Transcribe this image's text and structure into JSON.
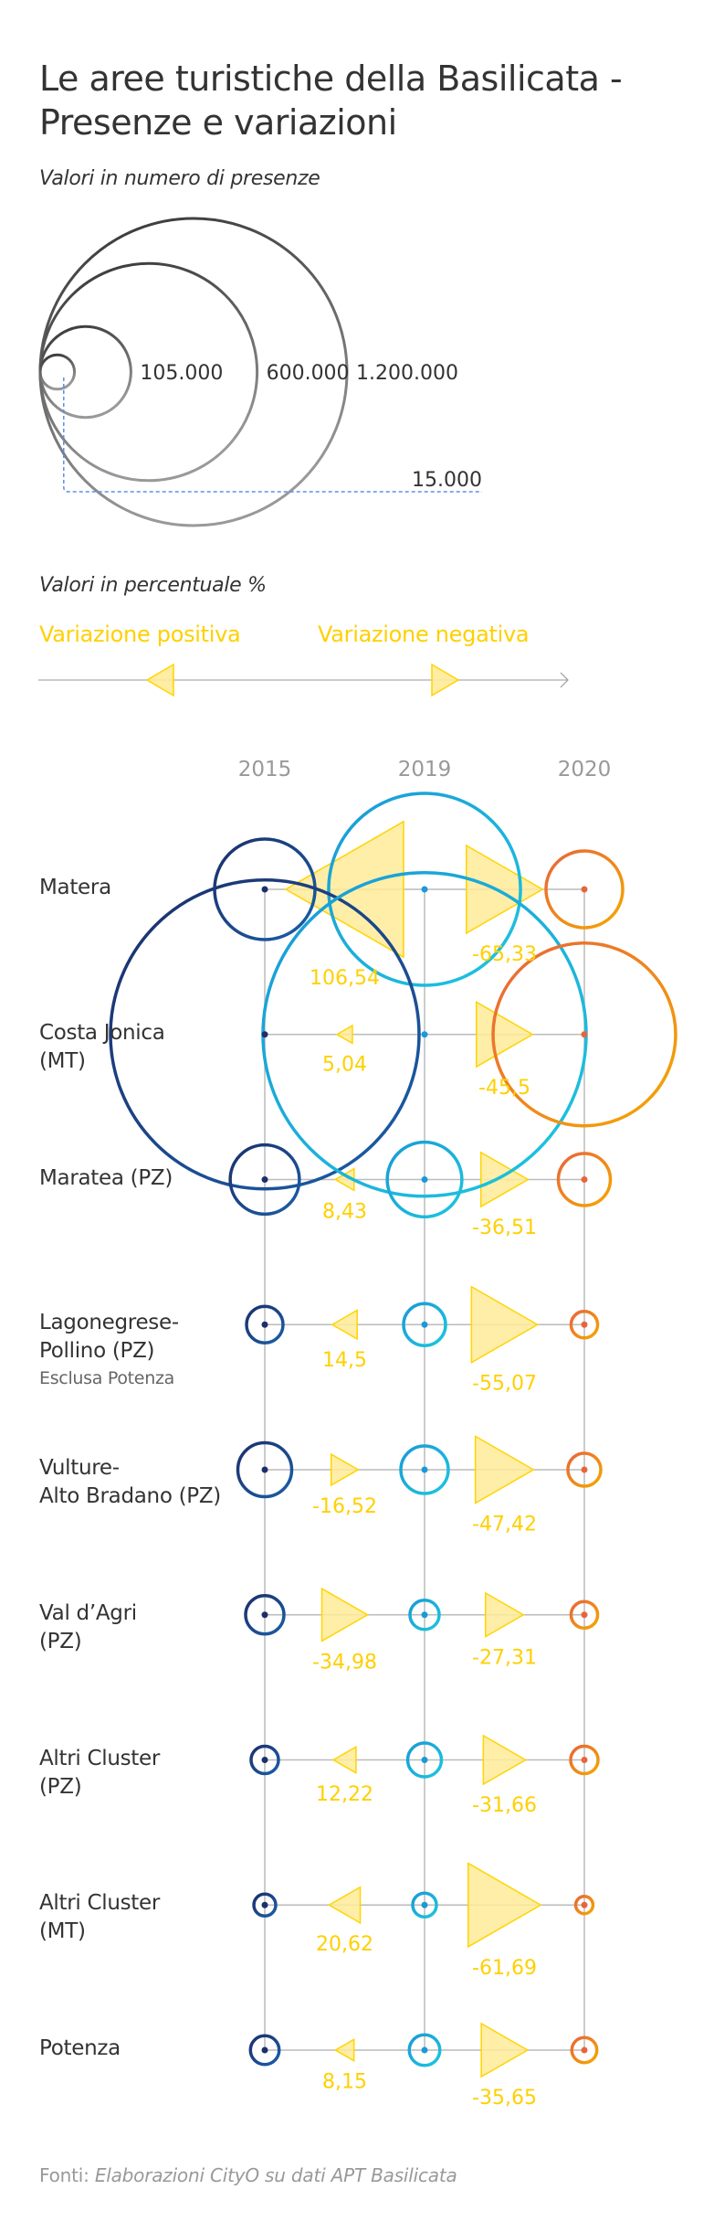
{
  "title": "Le aree turistiche della Basilicata - Presenze e variazioni",
  "subtitle": "Valori in numero di presenze",
  "size_legend": {
    "items": [
      {
        "label": "15.000",
        "value": 15000
      },
      {
        "label": "105.000",
        "value": 105000
      },
      {
        "label": "600.000",
        "value": 600000
      },
      {
        "label": "1.200.000",
        "value": 1200000
      }
    ]
  },
  "pct_legend": {
    "title": "Valori in percentuale %",
    "positive_label": "Variazione positiva",
    "negative_label": "Variazione negativa"
  },
  "colors": {
    "y2015": [
      "#1C2F6B",
      "#1A5FA8"
    ],
    "y2019": [
      "#1A9AD6",
      "#1CC6DE"
    ],
    "y2020": [
      "#E8653A",
      "#F5A800"
    ],
    "triangle_fill": "#FFEB99",
    "triangle_stroke": "#FFD400",
    "grid": "#BBBBBB",
    "text_yellow": "#FFD000"
  },
  "source": {
    "prefix": "Fonti:",
    "text": "Elaborazioni CityO su dati APT Basilicata"
  },
  "chart_data": {
    "type": "bubble-timeline",
    "title": "Le aree turistiche della Basilicata - Presenze e variazioni",
    "years": [
      "2015",
      "2019",
      "2020"
    ],
    "presence_note": "Circle area proportional to presences (estimated from circle size vs legend)",
    "variation_note": "Triangle pointing left = positive variation, pointing right = negative variation (%)",
    "rows": [
      {
        "label": "Matera",
        "sub": "",
        "presences_est": [
          128600,
          469000,
          75000
        ],
        "variations": [
          {
            "value": 106.54,
            "label": "106,54"
          },
          {
            "value": -65.33,
            "label": "-65,33"
          }
        ]
      },
      {
        "label": "Costa Jonica (MT)",
        "sub": "",
        "presences_est": [
          1214000,
          1332000,
          425000
        ],
        "variations": [
          {
            "value": 5.04,
            "label": "5,04"
          },
          {
            "value": -45.5,
            "label": "-45,5"
          }
        ]
      },
      {
        "label": "Maratea (PZ)",
        "sub": "",
        "presences_est": [
          61000,
          71000,
          34500
        ],
        "variations": [
          {
            "value": 8.43,
            "label": "8,43"
          },
          {
            "value": -36.51,
            "label": "-36,51"
          }
        ]
      },
      {
        "label": "Lagonegrese-Pollino (PZ)",
        "sub": "Esclusa Potenza",
        "presences_est": [
          17000,
          22500,
          9000
        ],
        "variations": [
          {
            "value": 14.5,
            "label": "14,5"
          },
          {
            "value": -55.07,
            "label": "-55,07"
          }
        ]
      },
      {
        "label": "Vulture-Alto Bradano (PZ)",
        "sub": "",
        "presences_est": [
          37000,
          28700,
          13800
        ],
        "variations": [
          {
            "value": -16.52,
            "label": "-16,52"
          },
          {
            "value": -47.42,
            "label": "-47,42"
          }
        ]
      },
      {
        "label": "Val d’Agri (PZ)",
        "sub": "",
        "presences_est": [
          18750,
          10900,
          9000
        ],
        "variations": [
          {
            "value": -34.98,
            "label": "-34,98"
          },
          {
            "value": -27.31,
            "label": "-27,31"
          }
        ]
      },
      {
        "label": "Altri Cluster (PZ)",
        "sub": "",
        "presences_est": [
          9600,
          14500,
          9600
        ],
        "variations": [
          {
            "value": 12.22,
            "label": "12,22"
          },
          {
            "value": -31.66,
            "label": "-31,66"
          }
        ]
      },
      {
        "label": "Altri Cluster (MT)",
        "sub": "",
        "presences_est": [
          6100,
          7200,
          3800
        ],
        "variations": [
          {
            "value": 20.62,
            "label": "20,62"
          },
          {
            "value": -61.69,
            "label": "-61,69"
          }
        ]
      },
      {
        "label": "Potenza",
        "sub": "",
        "presences_est": [
          10500,
          11900,
          8000
        ],
        "variations": [
          {
            "value": 8.15,
            "label": "8,15"
          },
          {
            "value": -35.65,
            "label": "-35,65"
          }
        ]
      }
    ]
  }
}
